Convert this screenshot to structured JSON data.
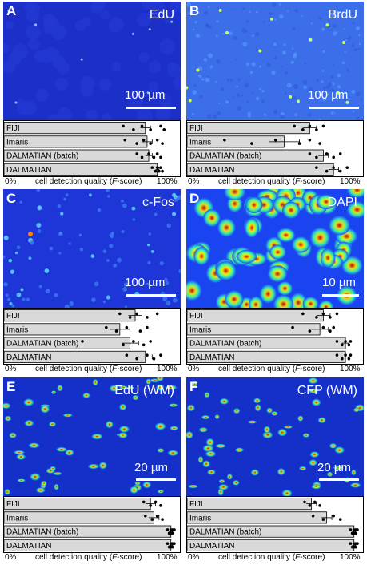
{
  "panels": [
    {
      "letter": "A",
      "stain": "EdU",
      "scalebar": "100 µm",
      "image_style": "sparse",
      "chart_data": {
        "type": "bar",
        "orientation": "horizontal",
        "categories": [
          "FIJI",
          "Imaris",
          "DALMATIAN (batch)",
          "DALMATIAN"
        ],
        "values": [
          0.83,
          0.84,
          0.85,
          0.9
        ],
        "errors": [
          0.03,
          0.03,
          0.02,
          0.01
        ],
        "points": [
          [
            0.7,
            0.76,
            0.81,
            0.86,
            0.92,
            0.94
          ],
          [
            0.71,
            0.78,
            0.82,
            0.86,
            0.9,
            0.93
          ],
          [
            0.78,
            0.81,
            0.85,
            0.88,
            0.9,
            0.92
          ],
          [
            0.87,
            0.89,
            0.9,
            0.91,
            0.92,
            0.93
          ]
        ],
        "xlim": [
          0,
          1
        ],
        "x_tick_left": "0%",
        "x_tick_right": "100%",
        "xlabel_prefix": "cell detection quality (",
        "xlabel_italic": "F",
        "xlabel_suffix": "-score)"
      }
    },
    {
      "letter": "B",
      "stain": "BrdU",
      "scalebar": "100 µm",
      "image_style": "noisy",
      "chart_data": {
        "type": "bar",
        "orientation": "horizontal",
        "categories": [
          "FIJI",
          "Imaris",
          "DALMATIAN (batch)",
          "DALMATIAN"
        ],
        "values": [
          0.72,
          0.57,
          0.8,
          0.86
        ],
        "errors": [
          0.04,
          0.09,
          0.03,
          0.03
        ],
        "points": [
          [
            0.63,
            0.68,
            0.72,
            0.76,
            0.8
          ],
          [
            0.22,
            0.38,
            0.52,
            0.66,
            0.72,
            0.78
          ],
          [
            0.72,
            0.76,
            0.82,
            0.86,
            0.9
          ],
          [
            0.76,
            0.82,
            0.86,
            0.9,
            0.94
          ]
        ],
        "xlim": [
          0,
          1
        ],
        "x_tick_left": "0%",
        "x_tick_right": "100%",
        "xlabel_prefix": "cell detection quality (",
        "xlabel_italic": "F",
        "xlabel_suffix": "-score)"
      }
    },
    {
      "letter": "C",
      "stain": "c-Fos",
      "scalebar": "100 µm",
      "image_style": "medium",
      "chart_data": {
        "type": "bar",
        "orientation": "horizontal",
        "categories": [
          "FIJI",
          "Imaris",
          "DALMATIAN (batch)",
          "DALMATIAN"
        ],
        "values": [
          0.77,
          0.68,
          0.74,
          0.83
        ],
        "errors": [
          0.04,
          0.06,
          0.05,
          0.04
        ],
        "points": [
          [
            0.68,
            0.74,
            0.78,
            0.84,
            0.9
          ],
          [
            0.6,
            0.66,
            0.72,
            0.8,
            0.84
          ],
          [
            0.46,
            0.7,
            0.76,
            0.82,
            0.86
          ],
          [
            0.72,
            0.78,
            0.84,
            0.88,
            0.92
          ]
        ],
        "xlim": [
          0,
          1
        ],
        "x_tick_left": "0%",
        "x_tick_right": "100%",
        "xlabel_prefix": "cell detection quality (",
        "xlabel_italic": "F",
        "xlabel_suffix": "-score)"
      }
    },
    {
      "letter": "D",
      "stain": "DAPI",
      "scalebar": "10 µm",
      "image_style": "dense",
      "chart_data": {
        "type": "bar",
        "orientation": "horizontal",
        "categories": [
          "FIJI",
          "Imaris",
          "DALMATIAN (batch)",
          "DALMATIAN"
        ],
        "values": [
          0.8,
          0.78,
          0.93,
          0.93
        ],
        "errors": [
          0.04,
          0.05,
          0.02,
          0.02
        ],
        "points": [
          [
            0.68,
            0.76,
            0.8,
            0.84,
            0.88
          ],
          [
            0.62,
            0.72,
            0.8,
            0.84,
            0.86
          ],
          [
            0.88,
            0.91,
            0.93,
            0.95,
            0.96
          ],
          [
            0.88,
            0.91,
            0.93,
            0.95,
            0.96
          ]
        ],
        "xlim": [
          0,
          1
        ],
        "x_tick_left": "0%",
        "x_tick_right": "100%",
        "xlabel_prefix": "cell detection quality (",
        "xlabel_italic": "F",
        "xlabel_suffix": "-score)"
      }
    },
    {
      "letter": "E",
      "stain": "EdU (WM)",
      "scalebar": "20 µm",
      "image_style": "wm",
      "chart_data": {
        "type": "bar",
        "orientation": "horizontal",
        "categories": [
          "FIJI",
          "Imaris",
          "DALMATIAN (batch)",
          "DALMATIAN"
        ],
        "values": [
          0.86,
          0.88,
          0.98,
          0.98
        ],
        "errors": [
          0.03,
          0.03,
          0.01,
          0.01
        ],
        "points": [
          [
            0.82,
            0.86,
            0.89,
            0.92
          ],
          [
            0.83,
            0.87,
            0.9,
            0.93
          ],
          [
            0.96,
            0.97,
            0.98,
            0.98,
            0.99,
            0.99,
            1.0
          ],
          [
            0.96,
            0.97,
            0.98,
            0.98,
            0.99,
            0.99,
            1.0
          ]
        ],
        "xlim": [
          0,
          1
        ],
        "x_tick_left": "0%",
        "x_tick_right": "100%",
        "xlabel_prefix": "cell detection quality (",
        "xlabel_italic": "F",
        "xlabel_suffix": "-score)"
      }
    },
    {
      "letter": "F",
      "stain": "CFP (WM)",
      "scalebar": "20 µm",
      "image_style": "wm",
      "chart_data": {
        "type": "bar",
        "orientation": "horizontal",
        "categories": [
          "FIJI",
          "Imaris",
          "DALMATIAN (batch)",
          "DALMATIAN"
        ],
        "values": [
          0.73,
          0.82,
          0.98,
          0.98
        ],
        "errors": [
          0.03,
          0.03,
          0.01,
          0.01
        ],
        "points": [
          [
            0.69,
            0.72,
            0.75,
            0.78
          ],
          [
            0.74,
            0.8,
            0.86,
            0.9
          ],
          [
            0.96,
            0.97,
            0.98,
            0.98,
            0.99,
            0.99,
            1.0
          ],
          [
            0.96,
            0.97,
            0.98,
            0.98,
            0.99,
            0.99,
            1.0
          ]
        ],
        "xlim": [
          0,
          1
        ],
        "x_tick_left": "0%",
        "x_tick_right": "100%",
        "xlabel_prefix": "cell detection quality (",
        "xlabel_italic": "F",
        "xlabel_suffix": "-score)"
      }
    }
  ]
}
